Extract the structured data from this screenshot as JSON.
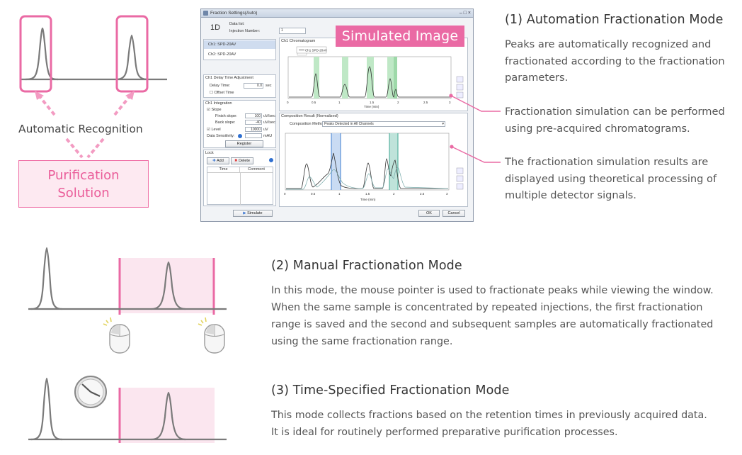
{
  "automation": {
    "heading": "(1) Automation Fractionation Mode",
    "description": "Peaks are automatically recognized and fractionated according to the fractionation parameters.",
    "callout_1": "Fractionation simulation can be performed using pre-acquired chromatograms.",
    "callout_2": "The fractionation simulation results are displayed using theoretical processing of multiple detector signals.",
    "diagram": {
      "recognition_label": "Automatic Recognition",
      "purification_line1": "Purification",
      "purification_line2": "Solution"
    }
  },
  "manual": {
    "heading": "(2) Manual Fractionation Mode",
    "description": "In this mode, the mouse pointer is used to fractionate peaks while viewing the window. When the same sample is concentrated by repeated injections, the first fractionation range is saved and the second and subsequent samples are automatically fractionated using the same fractionation range."
  },
  "time_specified": {
    "heading": "(3) Time-Specified Fractionation Mode",
    "line1": "This mode collects fractions based on the retention times in previously acquired data.",
    "line2": "It is ideal for routinely performed preparative purification processes."
  },
  "software_window": {
    "badge": "Simulated Image",
    "title": "Fraction Settings(Auto)",
    "mode_label": "1D",
    "datalist_label": "Data list:",
    "injection_label": "Injection Number:",
    "injection_value": "1",
    "channels": [
      "Ch1:  SPD-20AV",
      "Ch2:  SPD-20AV"
    ],
    "delay_section": "Ch1 Delay Time Adjustment",
    "delay_time_label": "Delay Time:",
    "delay_time_value": "0.0",
    "delay_time_unit": "sec",
    "offset_label": "Offset Time",
    "integration_section": "Ch1 Integration",
    "slope_label": "Slope",
    "finish_slope_label": "Finish slope:",
    "finish_slope_value": "100",
    "finish_slope_unit": "uV/sec",
    "back_slope_label": "Back slope:",
    "back_slope_value": "-40",
    "back_slope_unit": "uV/sec",
    "level_label": "Level",
    "level_value": "10000",
    "level_unit": "uV",
    "sensitivity_label": "Data Sensitivity:",
    "sensitivity_unit": "mAU",
    "register_button": "Register",
    "lock_section": "Lock",
    "add_button": "Add",
    "delete_button": "Delete",
    "table_headers": [
      "Time",
      "Comment"
    ],
    "chromatogram_title": "Ch1 Chromatogram",
    "legend_label": "Ch1 SPD-20AV",
    "composition_title": "Composition Result (Normalized)",
    "composition_method_label": "Composition Method:",
    "composition_method_value": "Peaks Detected in All Channels",
    "x_axis_label": "Time (min)",
    "x_ticks_top": [
      "0",
      "0.5",
      "1",
      "1.5",
      "2",
      "2.5",
      "3"
    ],
    "x_ticks_bottom": [
      "0",
      "0.5",
      "1",
      "1.5",
      "2",
      "2.5",
      "3"
    ],
    "simulate_button": "Simulate",
    "ok_button": "OK",
    "cancel_button": "Cancel"
  },
  "colors": {
    "accent_pink": "#ea6aa4",
    "purification_fill": "#fde9f1",
    "fraction_green": "#8fd39a",
    "fraction_blue": "#5b8fd6",
    "fraction_teal": "#58b3a0"
  }
}
